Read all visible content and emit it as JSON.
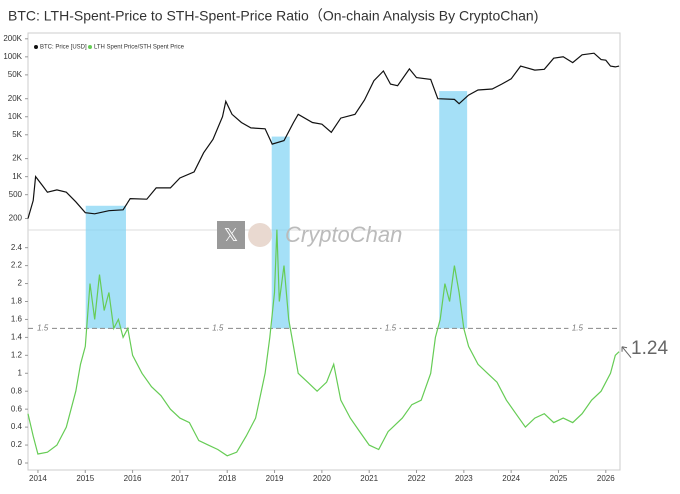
{
  "chart_data": [
    {
      "type": "line",
      "title": "BTC: LTH-Spent-Price to STH-Spent-Price Ratio（On-chain Analysis By CryptoChan)",
      "log_scale": true,
      "x": [
        2013.79,
        2013.9,
        2013.95,
        2014.1,
        2014.2,
        2014.4,
        2014.6,
        2014.8,
        2015.0,
        2015.2,
        2015.5,
        2015.8,
        2015.95,
        2016.3,
        2016.5,
        2016.8,
        2017.0,
        2017.3,
        2017.5,
        2017.7,
        2017.9,
        2017.97,
        2018.1,
        2018.3,
        2018.5,
        2018.8,
        2018.95,
        2019.2,
        2019.4,
        2019.5,
        2019.8,
        2020.0,
        2020.2,
        2020.4,
        2020.7,
        2020.9,
        2021.1,
        2021.3,
        2021.45,
        2021.6,
        2021.85,
        2022.0,
        2022.3,
        2022.45,
        2022.8,
        2022.9,
        2023.1,
        2023.3,
        2023.6,
        2023.8,
        2024.0,
        2024.2,
        2024.5,
        2024.7,
        2024.9,
        2025.1,
        2025.3,
        2025.5,
        2025.75,
        2025.9,
        2026.0,
        2026.1,
        2026.2,
        2026.28
      ],
      "series": [
        {
          "name": "BTC: Price [USD]",
          "color": "#111111",
          "values": [
            200,
            400,
            1000,
            700,
            550,
            600,
            550,
            380,
            250,
            240,
            270,
            280,
            430,
            420,
            650,
            650,
            950,
            1200,
            2500,
            4200,
            10000,
            18000,
            11000,
            8000,
            6500,
            6300,
            3500,
            4000,
            8000,
            11000,
            8000,
            7500,
            5500,
            9500,
            11000,
            19000,
            40000,
            58000,
            35000,
            33000,
            63000,
            45000,
            42000,
            20000,
            19500,
            16500,
            23000,
            28000,
            29000,
            35000,
            43000,
            70000,
            60000,
            62000,
            95000,
            100000,
            80000,
            108000,
            115000,
            90000,
            88000,
            70000,
            68000,
            70000
          ]
        }
      ],
      "ylim": [
        150,
        250000
      ],
      "yticks": [
        {
          "value": 200,
          "label": "200"
        },
        {
          "value": 500,
          "label": "500"
        },
        {
          "value": 1000,
          "label": "1K"
        },
        {
          "value": 2000,
          "label": "2K"
        },
        {
          "value": 5000,
          "label": "5K"
        },
        {
          "value": 10000,
          "label": "10K"
        },
        {
          "value": 20000,
          "label": "20K"
        },
        {
          "value": 50000,
          "label": "50K"
        },
        {
          "value": 100000,
          "label": "100K"
        },
        {
          "value": 200000,
          "label": "200K"
        }
      ],
      "watermark": "CryptoChan"
    },
    {
      "type": "line",
      "x": [
        2013.79,
        2013.9,
        2014.0,
        2014.2,
        2014.4,
        2014.6,
        2014.8,
        2014.9,
        2015.0,
        2015.1,
        2015.2,
        2015.3,
        2015.4,
        2015.5,
        2015.6,
        2015.7,
        2015.8,
        2015.9,
        2016.0,
        2016.2,
        2016.4,
        2016.6,
        2016.8,
        2017.0,
        2017.2,
        2017.4,
        2017.6,
        2017.8,
        2018.0,
        2018.2,
        2018.4,
        2018.6,
        2018.8,
        2018.9,
        2019.0,
        2019.05,
        2019.1,
        2019.2,
        2019.3,
        2019.4,
        2019.5,
        2019.7,
        2019.9,
        2020.1,
        2020.25,
        2020.4,
        2020.6,
        2020.8,
        2021.0,
        2021.2,
        2021.4,
        2021.5,
        2021.7,
        2021.9,
        2022.1,
        2022.3,
        2022.4,
        2022.5,
        2022.6,
        2022.7,
        2022.8,
        2022.9,
        2023.0,
        2023.1,
        2023.3,
        2023.5,
        2023.7,
        2023.9,
        2024.1,
        2024.3,
        2024.5,
        2024.7,
        2024.9,
        2025.1,
        2025.3,
        2025.5,
        2025.7,
        2025.9,
        2026.1,
        2026.2,
        2026.28
      ],
      "series": [
        {
          "name": "LTH Spent Price/STH Spent Price",
          "color": "#66cc55",
          "values": [
            0.55,
            0.3,
            0.1,
            0.12,
            0.2,
            0.4,
            0.8,
            1.1,
            1.3,
            2.0,
            1.6,
            2.1,
            1.7,
            1.9,
            1.5,
            1.6,
            1.4,
            1.5,
            1.2,
            1.0,
            0.85,
            0.75,
            0.6,
            0.5,
            0.45,
            0.25,
            0.2,
            0.15,
            0.08,
            0.12,
            0.3,
            0.5,
            1.0,
            1.4,
            1.9,
            2.6,
            1.8,
            2.2,
            1.6,
            1.3,
            1.0,
            0.9,
            0.8,
            0.9,
            1.1,
            0.7,
            0.5,
            0.35,
            0.2,
            0.15,
            0.35,
            0.4,
            0.5,
            0.65,
            0.7,
            1.0,
            1.4,
            1.6,
            2.0,
            1.8,
            2.2,
            1.9,
            1.5,
            1.3,
            1.1,
            1.0,
            0.9,
            0.7,
            0.55,
            0.4,
            0.5,
            0.55,
            0.45,
            0.5,
            0.45,
            0.55,
            0.7,
            0.8,
            1.0,
            1.2,
            1.24
          ]
        }
      ],
      "ylim": [
        0,
        2.53
      ],
      "yticks": [
        0,
        0.2,
        0.4,
        0.6,
        0.8,
        1,
        1.2,
        1.4,
        1.6,
        1.8,
        2,
        2.2,
        2.4
      ],
      "xlim": [
        2013.79,
        2026.3
      ],
      "xticks": [
        2014,
        2015,
        2016,
        2017,
        2018,
        2019,
        2020,
        2021,
        2022,
        2023,
        2024,
        2025,
        2026
      ],
      "threshold": {
        "value": 1.5,
        "label": "1.5"
      },
      "highlight_ranges": [
        [
          2015.01,
          2015.86
        ],
        [
          2018.94,
          2019.32
        ],
        [
          2022.48,
          2023.07
        ]
      ],
      "annotation": "1.24"
    }
  ]
}
